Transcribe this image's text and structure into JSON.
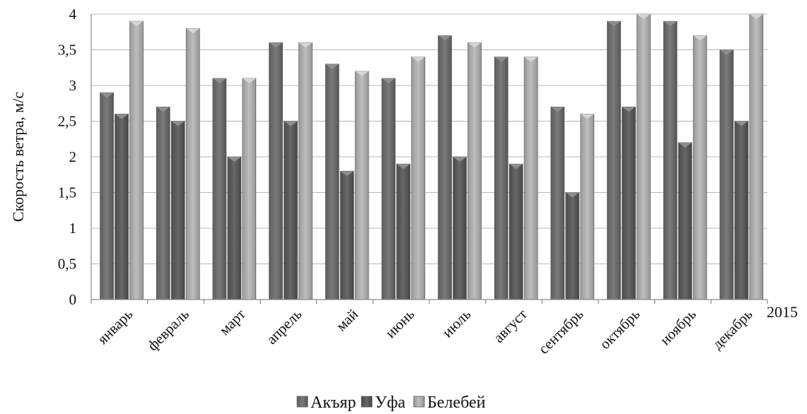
{
  "chart_data": {
    "type": "bar",
    "categories": [
      "январь",
      "февраль",
      "март",
      "апрель",
      "май",
      "июнь",
      "июль",
      "август",
      "сентябрь",
      "октябрь",
      "ноябрь",
      "декабрь"
    ],
    "series": [
      {
        "name": "Акъяр",
        "values": [
          2.9,
          2.7,
          3.1,
          3.6,
          3.3,
          3.1,
          3.7,
          3.4,
          2.7,
          3.9,
          3.9,
          3.5
        ],
        "color": "#6e6e6e"
      },
      {
        "name": "Уфа",
        "values": [
          2.6,
          2.5,
          2.0,
          2.5,
          1.8,
          1.9,
          2.0,
          1.9,
          1.5,
          2.7,
          2.2,
          2.5
        ],
        "color": "#5a5a5a"
      },
      {
        "name": "Белебей",
        "values": [
          3.9,
          3.8,
          3.1,
          3.6,
          3.2,
          3.4,
          3.6,
          3.4,
          2.6,
          4.0,
          3.7,
          4.0
        ],
        "color": "#a9a9a9"
      }
    ],
    "ylabel": "Скорость ветра, м/с",
    "xlabel": "2015",
    "ylim": [
      0,
      4
    ],
    "yticks": [
      "0",
      "0,5",
      "1",
      "1,5",
      "2",
      "2,5",
      "3",
      "3,5",
      "4"
    ],
    "grid": true,
    "legend_position": "bottom"
  }
}
